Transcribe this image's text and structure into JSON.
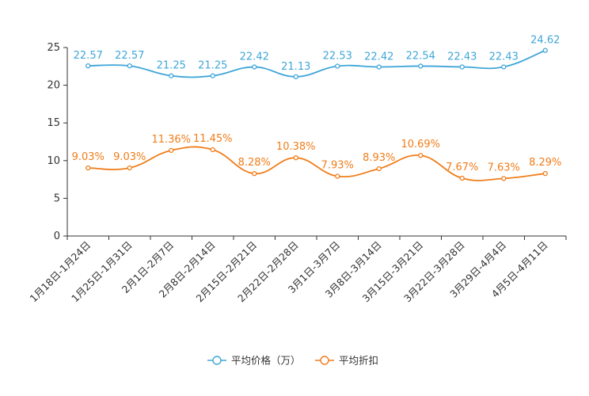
{
  "chart_data": {
    "type": "line",
    "title": "",
    "xlabel": "",
    "ylabel": "",
    "ylim": [
      0,
      25
    ],
    "yticks": [
      0,
      5,
      10,
      15,
      20,
      25
    ],
    "grid": false,
    "legend_position": "bottom-center",
    "categories": [
      "1月18日-1月24日",
      "1月25日-1月31日",
      "2月1日-2月7日",
      "2月8日-2月14日",
      "2月15日-2月21日",
      "2月22日-2月28日",
      "3月1日-3月7日",
      "3月8日-3月14日",
      "3月15日-3月21日",
      "3月22日-3月28日",
      "3月29日-4月4日",
      "4月5日-4月11日"
    ],
    "series": [
      {
        "name": "平均价格（万）",
        "color": "#3fa6d8",
        "values": [
          22.57,
          22.57,
          21.25,
          21.25,
          22.42,
          21.13,
          22.53,
          22.42,
          22.54,
          22.43,
          22.43,
          24.62
        ],
        "labels": [
          "22.57",
          "22.57",
          "21.25",
          "21.25",
          "22.42",
          "21.13",
          "22.53",
          "22.42",
          "22.54",
          "22.43",
          "22.43",
          "24.62"
        ]
      },
      {
        "name": "平均折扣",
        "color": "#f07d1a",
        "values": [
          9.03,
          9.03,
          11.36,
          11.45,
          8.28,
          10.38,
          7.93,
          8.93,
          10.69,
          7.67,
          7.63,
          8.29
        ],
        "labels": [
          "9.03%",
          "9.03%",
          "11.36%",
          "11.45%",
          "8.28%",
          "10.38%",
          "7.93%",
          "8.93%",
          "10.69%",
          "7.67%",
          "7.63%",
          "8.29%"
        ]
      }
    ]
  }
}
